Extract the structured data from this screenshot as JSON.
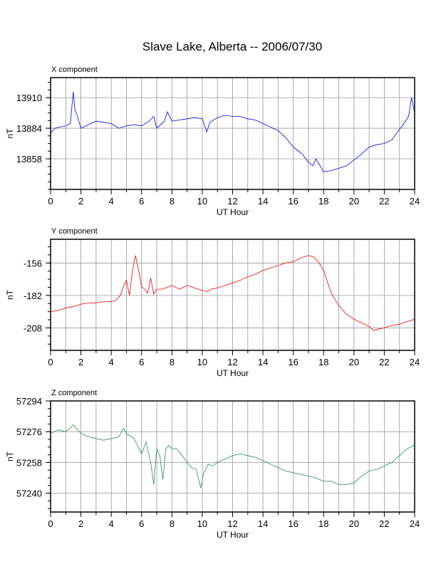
{
  "page": {
    "title": "Slave Lake, Alberta -- 2006/07/30"
  },
  "chart_data": [
    {
      "type": "line",
      "title": "X component",
      "xlabel": "UT Hour",
      "ylabel": "nT",
      "xlim": [
        0,
        24
      ],
      "ylim": [
        13832,
        13927
      ],
      "xticks": [
        0,
        2,
        4,
        6,
        8,
        10,
        12,
        14,
        16,
        18,
        20,
        22,
        24
      ],
      "yticks": [
        13858,
        13884,
        13910
      ],
      "grid": true,
      "color": "#0000dd",
      "series": [
        {
          "x": [
            0,
            0.3,
            0.6,
            1.0,
            1.3,
            1.5,
            1.6,
            1.8,
            2.0,
            2.5,
            3.0,
            3.5,
            4.0,
            4.5,
            5.0,
            5.5,
            6.0,
            6.5,
            6.8,
            7.0,
            7.5,
            7.7,
            8.0,
            8.5,
            9.0,
            9.5,
            10.0,
            10.3,
            10.5,
            11.0,
            11.5,
            12.0,
            12.5,
            13.0,
            13.5,
            14.0,
            14.5,
            15.0,
            15.5,
            16.0,
            16.3,
            16.6,
            17.0,
            17.3,
            17.5,
            18.0,
            18.5,
            19.0,
            19.5,
            20.0,
            20.5,
            21.0,
            21.5,
            22.0,
            22.5,
            23.0,
            23.3,
            23.6,
            23.8,
            24.0
          ],
          "values": [
            13880,
            13884,
            13885,
            13886,
            13888,
            13915,
            13900,
            13893,
            13884,
            13887,
            13890,
            13889,
            13888,
            13884,
            13886,
            13887,
            13886,
            13890,
            13894,
            13884,
            13890,
            13898,
            13890,
            13891,
            13892,
            13893,
            13892,
            13881,
            13889,
            13893,
            13895,
            13894,
            13894,
            13892,
            13891,
            13888,
            13885,
            13882,
            13876,
            13868,
            13865,
            13862,
            13855,
            13852,
            13858,
            13847,
            13848,
            13850,
            13852,
            13857,
            13862,
            13868,
            13870,
            13871,
            13874,
            13883,
            13888,
            13894,
            13910,
            13897
          ]
        }
      ]
    },
    {
      "type": "line",
      "title": "Y component",
      "xlabel": "UT Hour",
      "ylabel": "nT",
      "xlim": [
        0,
        24
      ],
      "ylim": [
        -226,
        -137
      ],
      "xticks": [
        0,
        2,
        4,
        6,
        8,
        10,
        12,
        14,
        16,
        18,
        20,
        22,
        24
      ],
      "yticks": [
        -208,
        -182,
        -156
      ],
      "grid": true,
      "color": "#ee0000",
      "series": [
        {
          "x": [
            0,
            0.5,
            1.0,
            1.5,
            2.0,
            2.5,
            3.0,
            3.5,
            4.0,
            4.3,
            4.6,
            4.8,
            5.0,
            5.2,
            5.4,
            5.6,
            5.8,
            6.0,
            6.2,
            6.4,
            6.6,
            6.8,
            7.0,
            7.3,
            7.6,
            8.0,
            8.5,
            9.0,
            9.5,
            10.0,
            10.3,
            10.6,
            11.0,
            11.5,
            12.0,
            12.5,
            13.0,
            13.5,
            14.0,
            14.5,
            15.0,
            15.5,
            16.0,
            16.5,
            17.0,
            17.3,
            17.6,
            18.0,
            18.5,
            19.0,
            19.5,
            20.0,
            20.5,
            21.0,
            21.3,
            21.6,
            22.0,
            22.5,
            23.0,
            23.5,
            24.0
          ],
          "values": [
            -195,
            -194,
            -192,
            -191,
            -189,
            -188,
            -188,
            -187,
            -187,
            -186,
            -182,
            -175,
            -170,
            -182,
            -162,
            -150,
            -162,
            -175,
            -177,
            -180,
            -168,
            -181,
            -177,
            -177,
            -176,
            -174,
            -177,
            -174,
            -176,
            -178,
            -179,
            -177,
            -176,
            -174,
            -172,
            -170,
            -167,
            -165,
            -162,
            -160,
            -158,
            -156,
            -155,
            -152,
            -150,
            -151,
            -154,
            -162,
            -180,
            -190,
            -197,
            -201,
            -204,
            -207,
            -210,
            -209,
            -208,
            -206,
            -205,
            -203,
            -201
          ]
        }
      ]
    },
    {
      "type": "line",
      "title": "Z component",
      "xlabel": "UT Hour",
      "ylabel": "nT",
      "xlim": [
        0,
        24
      ],
      "ylim": [
        57229,
        57294
      ],
      "xticks": [
        0,
        2,
        4,
        6,
        8,
        10,
        12,
        14,
        16,
        18,
        20,
        22,
        24
      ],
      "yticks": [
        57240,
        57258,
        57276,
        57294
      ],
      "grid": true,
      "color": "#33885a",
      "series": [
        {
          "x": [
            0,
            0.5,
            1.0,
            1.5,
            2.0,
            2.5,
            3.0,
            3.5,
            4.0,
            4.5,
            4.8,
            5.0,
            5.5,
            6.0,
            6.3,
            6.6,
            6.8,
            7.0,
            7.2,
            7.4,
            7.6,
            7.8,
            8.0,
            8.3,
            8.6,
            9.0,
            9.3,
            9.6,
            9.9,
            10.1,
            10.4,
            10.7,
            11.0,
            11.5,
            12.0,
            12.5,
            13.0,
            13.5,
            14.0,
            14.5,
            15.0,
            15.5,
            16.0,
            16.5,
            17.0,
            17.5,
            18.0,
            18.5,
            19.0,
            19.5,
            20.0,
            20.5,
            21.0,
            21.5,
            22.0,
            22.5,
            23.0,
            23.5,
            24.0
          ],
          "values": [
            57275,
            57277,
            57276,
            57280,
            57275,
            57273,
            57272,
            57271,
            57272,
            57273,
            57278,
            57275,
            57272,
            57263,
            57270,
            57258,
            57245,
            57266,
            57262,
            57248,
            57266,
            57268,
            57266,
            57266,
            57263,
            57258,
            57255,
            57254,
            57243,
            57252,
            57257,
            57256,
            57258,
            57260,
            57262,
            57263,
            57262,
            57261,
            57259,
            57257,
            57255,
            57253,
            57252,
            57251,
            57250,
            57249,
            57247,
            57247,
            57245,
            57245,
            57246,
            57250,
            57253,
            57254,
            57256,
            57258,
            57262,
            57266,
            57268
          ]
        }
      ]
    }
  ]
}
